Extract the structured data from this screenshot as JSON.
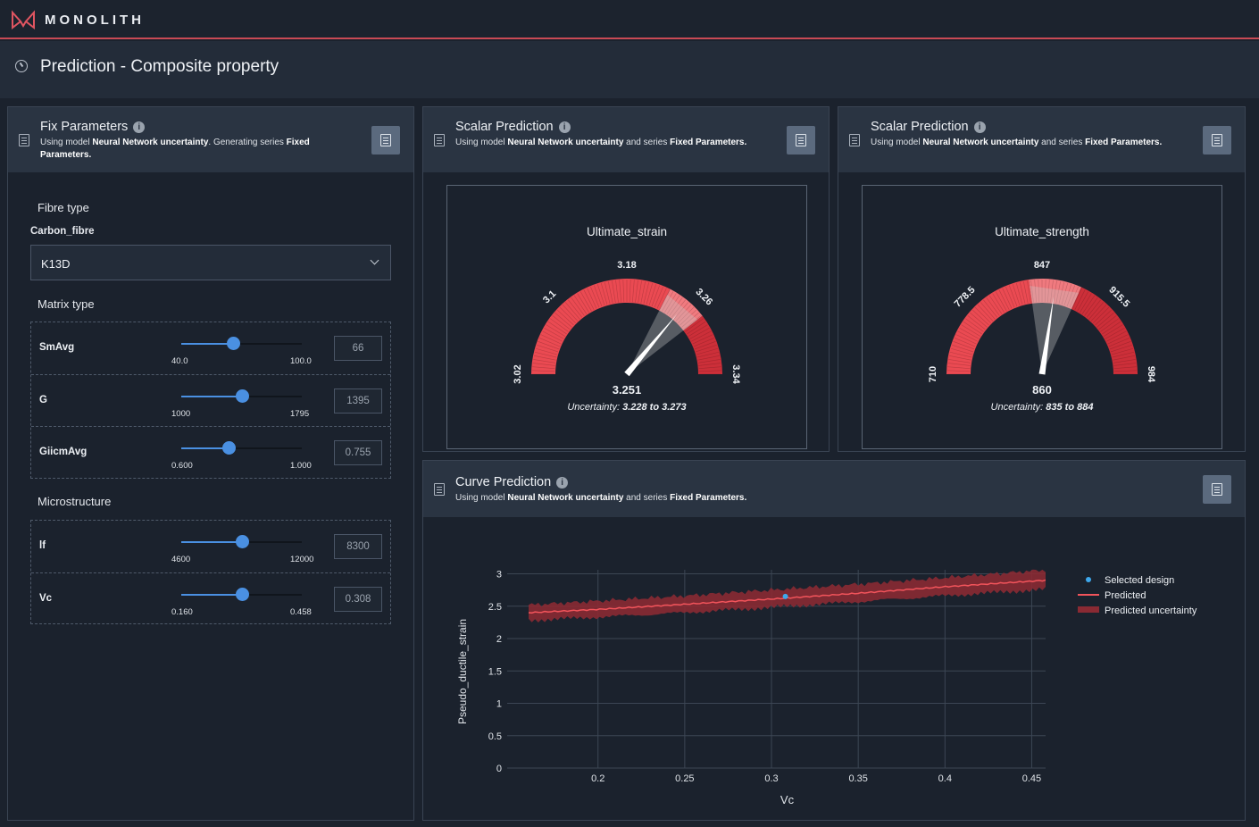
{
  "brand": {
    "name": "MONOLITH",
    "accent": "#c94a55"
  },
  "page": {
    "title": "Prediction - Composite property",
    "icon": "gauge-icon"
  },
  "fix_panel": {
    "title": "Fix Parameters",
    "sub_prefix": "Using model ",
    "model": "Neural Network uncertainty",
    "sub_mid": ". Generating series ",
    "series": "Fixed Parameters",
    "sub_end": ".",
    "fibre_label": "Fibre type",
    "fibre_group": "Carbon_fibre",
    "fibre_value": "K13D",
    "matrix_label": "Matrix type",
    "micro_label": "Microstructure",
    "matrix_sliders": [
      {
        "name": "SmAvg",
        "min": "40.0",
        "max": "100.0",
        "value": "66",
        "fraction": 0.43
      },
      {
        "name": "G",
        "min": "1000",
        "max": "1795",
        "value": "1395",
        "fraction": 0.5
      },
      {
        "name": "GiicmAvg",
        "min": "0.600",
        "max": "1.000",
        "value": "0.755",
        "fraction": 0.39
      }
    ],
    "micro_sliders": [
      {
        "name": "lf",
        "min": "4600",
        "max": "12000",
        "value": "8300",
        "fraction": 0.5
      },
      {
        "name": "Vc",
        "min": "0.160",
        "max": "0.458",
        "value": "0.308",
        "fraction": 0.5
      }
    ]
  },
  "scalar1": {
    "title": "Scalar Prediction",
    "sub_prefix": "Using model ",
    "model": "Neural Network uncertainty",
    "sub_mid": " and series ",
    "series": "Fixed Parameters",
    "sub_end": ".",
    "gauge": {
      "name": "Ultimate_strain",
      "min": 3.02,
      "max": 3.34,
      "ticks": [
        "3.02",
        "3.1",
        "3.18",
        "3.26",
        "3.34"
      ],
      "value": 3.251,
      "value_label": "3.251",
      "low": 3.228,
      "high": 3.273,
      "uncertainty_prefix": "Uncertainty: ",
      "uncertainty_range": "3.228 to 3.273"
    }
  },
  "scalar2": {
    "title": "Scalar Prediction",
    "sub_prefix": "Using model ",
    "model": "Neural Network uncertainty",
    "sub_mid": " and series ",
    "series": "Fixed Parameters",
    "sub_end": ".",
    "gauge": {
      "name": "Ultimate_strength",
      "min": 710,
      "max": 984,
      "ticks": [
        "710",
        "778.5",
        "847",
        "915.5",
        "984"
      ],
      "value": 860,
      "value_label": "860",
      "low": 835,
      "high": 884,
      "uncertainty_prefix": "Uncertainty: ",
      "uncertainty_range": "835 to 884"
    }
  },
  "curve": {
    "title": "Curve Prediction",
    "sub_prefix": "Using model ",
    "model": "Neural Network uncertainty",
    "sub_mid": " and series ",
    "series": "Fixed Parameters",
    "sub_end": "."
  },
  "chart_data": {
    "type": "line",
    "xlabel": "Vc",
    "ylabel": "Pseudo_ductile_strain",
    "xlim": [
      0.16,
      0.458
    ],
    "ylim": [
      0,
      3.2
    ],
    "xticks": [
      "0.2",
      "0.25",
      "0.3",
      "0.35",
      "0.4",
      "0.45"
    ],
    "yticks": [
      "0",
      "0.5",
      "1",
      "1.5",
      "2",
      "2.5",
      "3"
    ],
    "grid": true,
    "legend_position": "top-right",
    "x": [
      0.16,
      0.2,
      0.25,
      0.3,
      0.35,
      0.4,
      0.458
    ],
    "series": [
      {
        "name": "Predicted",
        "values": [
          2.4,
          2.45,
          2.53,
          2.61,
          2.7,
          2.8,
          2.9
        ],
        "color": "#f2545b"
      },
      {
        "name": "Predicted uncertainty",
        "lower": [
          2.28,
          2.33,
          2.4,
          2.48,
          2.57,
          2.66,
          2.76
        ],
        "upper": [
          2.52,
          2.58,
          2.66,
          2.75,
          2.84,
          2.94,
          3.06
        ],
        "color": "#8a2a33"
      }
    ],
    "selected_design": {
      "name": "Selected design",
      "x": 0.308,
      "y": 2.65,
      "color": "#3ea8ec"
    }
  }
}
